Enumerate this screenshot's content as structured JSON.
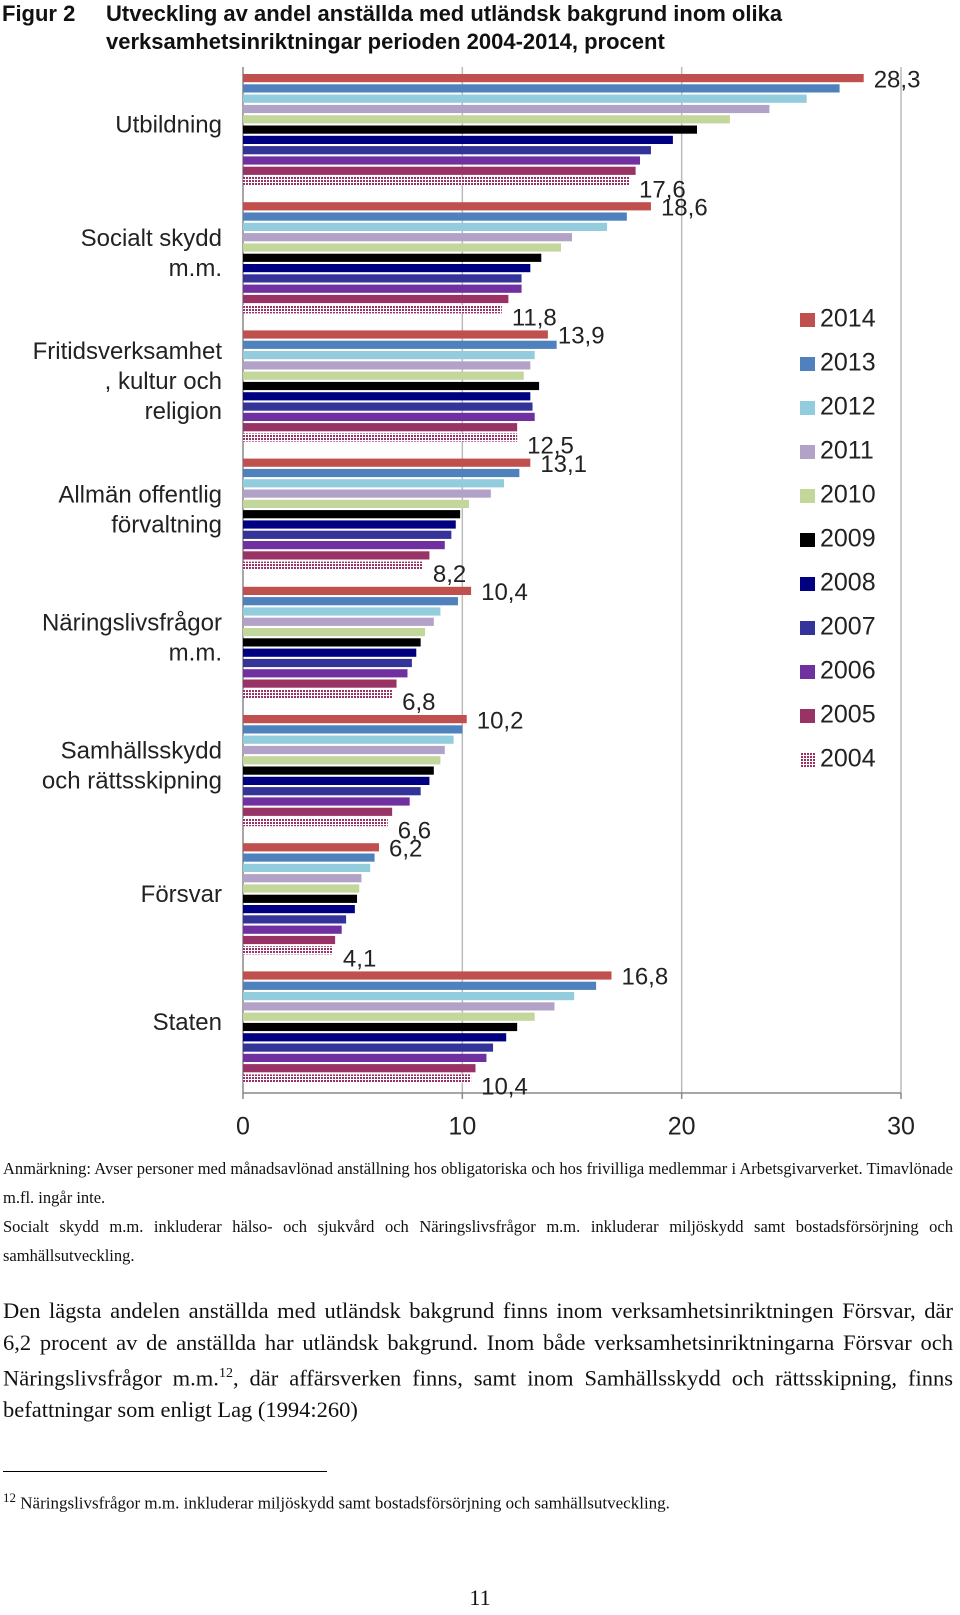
{
  "header": {
    "figure_label": "Figur 2",
    "title": "Utveckling av andel anställda med utländsk bakgrund inom olika verksamhetsinriktningar perioden 2004-2014, procent"
  },
  "chart_data": {
    "type": "bar",
    "orientation": "horizontal",
    "grid": true,
    "legend": "right",
    "categories": [
      "Utbildning",
      "Socialt skydd\nm.m.",
      "Fritidsverksamhet\n, kultur och\nreligion",
      "Allmän offentlig\nförvaltning",
      "Näringslivsfrågor\nm.m.",
      "Samhällsskydd\noch rättsskipning",
      "Försvar",
      "Staten"
    ],
    "xlim": [
      0,
      30
    ],
    "xticks": [
      0,
      10,
      20,
      30
    ],
    "series": [
      {
        "name": "2014",
        "color": "#c0504d",
        "values": [
          28.3,
          18.6,
          13.9,
          13.1,
          10.4,
          10.2,
          6.2,
          16.8
        ],
        "value_labels": [
          "28,3",
          "18,6",
          "13,9",
          "13,1",
          "10,4",
          "10,2",
          "6,2",
          "16,8"
        ]
      },
      {
        "name": "2013",
        "color": "#4f81bd",
        "values": [
          27.2,
          17.5,
          14.3,
          12.6,
          9.8,
          10.0,
          6.0,
          16.1
        ]
      },
      {
        "name": "2012",
        "color": "#93cddd",
        "values": [
          25.7,
          16.6,
          13.3,
          11.9,
          9.0,
          9.6,
          5.8,
          15.1
        ]
      },
      {
        "name": "2011",
        "color": "#b3a2c7",
        "values": [
          24.0,
          15.0,
          13.1,
          11.3,
          8.7,
          9.2,
          5.4,
          14.2
        ]
      },
      {
        "name": "2010",
        "color": "#c3d69b",
        "values": [
          22.2,
          14.5,
          12.8,
          10.3,
          8.3,
          9.0,
          5.3,
          13.3
        ]
      },
      {
        "name": "2009",
        "color": "#000000",
        "values": [
          20.7,
          13.6,
          13.5,
          9.9,
          8.1,
          8.7,
          5.2,
          12.5
        ]
      },
      {
        "name": "2008",
        "color": "#000080",
        "values": [
          19.6,
          13.1,
          13.1,
          9.7,
          7.9,
          8.5,
          5.1,
          12.0
        ]
      },
      {
        "name": "2007",
        "color": "#333399",
        "values": [
          18.6,
          12.7,
          13.2,
          9.5,
          7.7,
          8.1,
          4.7,
          11.4
        ]
      },
      {
        "name": "2006",
        "color": "#7030a0",
        "values": [
          18.1,
          12.7,
          13.3,
          9.2,
          7.5,
          7.6,
          4.5,
          11.1
        ]
      },
      {
        "name": "2005",
        "color": "#993366",
        "values": [
          17.9,
          12.1,
          12.5,
          8.5,
          7.0,
          6.8,
          4.2,
          10.6
        ]
      },
      {
        "name": "2004",
        "color": "#993366",
        "pattern": "dots",
        "values": [
          17.6,
          11.8,
          12.5,
          8.2,
          6.8,
          6.6,
          4.1,
          10.4
        ],
        "value_labels": [
          "17,6",
          "11,8",
          "12,5",
          "8,2",
          "6,8",
          "6,6",
          "4,1",
          "10,4"
        ]
      }
    ]
  },
  "notes": [
    "Anmärkning: Avser personer med månadsavlönad anställning hos obligatoriska och hos frivilliga medlemmar i Arbetsgivarverket. Timavlönade m.fl. ingår inte.",
    "Socialt skydd m.m. inkluderar hälso- och sjukvård och Näringslivsfrågor m.m. inkluderar miljöskydd samt bostadsförsörjning och samhällsutveckling."
  ],
  "body": {
    "before": "Den lägsta andelen anställda med utländsk bakgrund finns inom verksamhetsinriktningen Försvar, där 6,2 procent av de anställda har utländsk bakgrund. Inom både verksamhetsinriktningarna Försvar och Näringslivsfrågor m.m.",
    "ref": "12",
    "after": ", där affärsverken finns, samt inom Samhällsskydd och rättsskipning, finns befattningar som enligt Lag (1994:260)"
  },
  "footnote": {
    "number": "12",
    "text": "Näringslivsfrågor m.m. inkluderar miljöskydd samt bostadsförsörjning och samhällsutveckling."
  },
  "page_number": "11"
}
